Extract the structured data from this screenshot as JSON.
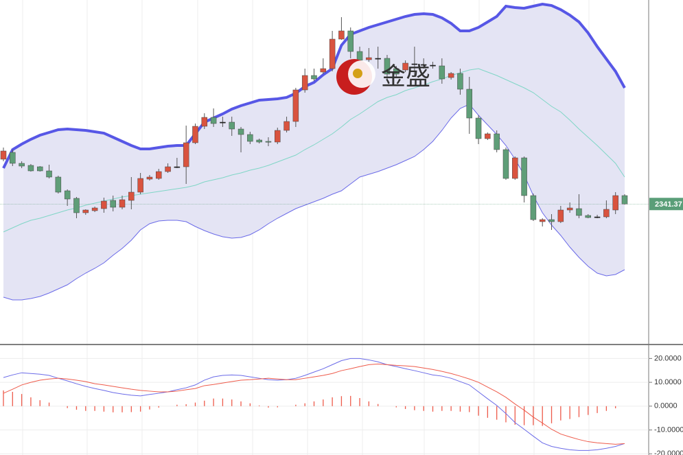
{
  "chart_data": [
    {
      "type": "candlestick",
      "open": [
        2374,
        2379,
        2371,
        2369.5,
        2368.5,
        2365.5,
        2361,
        2351,
        2345.5,
        2335,
        2336.5,
        2338,
        2344,
        2339,
        2344,
        2350,
        2359.5,
        2360,
        2365,
        2368.5,
        2368.5,
        2386,
        2398,
        2404.5,
        2401,
        2401,
        2396,
        2392,
        2388,
        2387,
        2386.5,
        2395,
        2401.5,
        2424.5,
        2435,
        2437.5,
        2440,
        2461.5,
        2467.5,
        2452.5,
        2446.5,
        2447.5,
        2447.5,
        2440,
        2439,
        2443.5,
        2443,
        2442.5,
        2442,
        2433.5,
        2436.5,
        2425,
        2404,
        2389,
        2392.5,
        2381,
        2360,
        2375,
        2347.5,
        2328.5,
        2330,
        2328.5,
        2337,
        2338,
        2333,
        2332,
        2332,
        2337,
        2347.5
      ],
      "high": [
        2382.5,
        2381,
        2372.5,
        2370.5,
        2369,
        2370,
        2362,
        2352,
        2346.5,
        2337.5,
        2339.5,
        2346,
        2347.5,
        2347.5,
        2361,
        2364,
        2362.5,
        2367,
        2371,
        2375,
        2398.5,
        2400,
        2407.5,
        2411,
        2405,
        2405,
        2397.5,
        2394,
        2389,
        2390,
        2397,
        2405,
        2426,
        2440,
        2440,
        2447.5,
        2467.5,
        2477.5,
        2470,
        2456,
        2455,
        2456,
        2450,
        2442,
        2446,
        2456,
        2447.5,
        2445,
        2447.5,
        2437.5,
        2440,
        2434,
        2406,
        2393.5,
        2395,
        2382.5,
        2376,
        2376,
        2349,
        2331,
        2334,
        2340,
        2342.5,
        2348.5,
        2334,
        2333.5,
        2344,
        2350,
        2348.5
      ],
      "low": [
        2372.5,
        2369,
        2367.5,
        2365,
        2365,
        2360,
        2349,
        2340,
        2331,
        2333.5,
        2335.5,
        2335,
        2336,
        2337.5,
        2337.5,
        2348.5,
        2358.5,
        2359,
        2364,
        2367.5,
        2356,
        2385,
        2396,
        2397.5,
        2397.5,
        2391,
        2379,
        2385,
        2385.5,
        2383.5,
        2385,
        2393.5,
        2397.5,
        2422.5,
        2431,
        2436,
        2438,
        2461,
        2447.5,
        2442.5,
        2445,
        2440,
        2432.5,
        2434,
        2437.5,
        2435,
        2440,
        2440,
        2429,
        2432,
        2421,
        2392.5,
        2385,
        2388,
        2379,
        2359,
        2359,
        2342.5,
        2329,
        2325,
        2322.5,
        2327.5,
        2335,
        2331,
        2331,
        2331,
        2331,
        2334,
        2341
      ],
      "close": [
        2380,
        2371,
        2369,
        2365.5,
        2365.5,
        2361,
        2350,
        2345,
        2335,
        2337,
        2338.5,
        2343.5,
        2339,
        2344.5,
        2350,
        2360,
        2361,
        2365,
        2368.5,
        2368.5,
        2386,
        2398,
        2404.5,
        2400,
        2401,
        2396,
        2392,
        2387,
        2386.5,
        2386.5,
        2395,
        2401.5,
        2424.5,
        2435,
        2432.5,
        2440,
        2461.5,
        2467.5,
        2452.5,
        2446,
        2448,
        2447.5,
        2436,
        2436,
        2444,
        2443.5,
        2443,
        2442.5,
        2432.5,
        2436.5,
        2425,
        2404,
        2389,
        2392.5,
        2381,
        2360,
        2375,
        2347.5,
        2330,
        2330,
        2328.5,
        2337,
        2338.5,
        2333,
        2331.5,
        2332,
        2337.5,
        2347.5,
        2341.37
      ],
      "up_color": "#d9533f",
      "down_color": "#5f9e78",
      "doji_color": "#222222",
      "bands": [
        {
          "color": "#5757e6",
          "values": [
            2367.5,
            2381,
            2385,
            2388.5,
            2391.5,
            2393.5,
            2395.5,
            2396,
            2395.5,
            2395,
            2394,
            2393,
            2390,
            2387,
            2384,
            2381.5,
            2381.5,
            2382.5,
            2383.5,
            2384,
            2384,
            2392.5,
            2401,
            2404,
            2407,
            2410.5,
            2413,
            2415,
            2417,
            2417.5,
            2418,
            2419,
            2422,
            2427,
            2430,
            2435.5,
            2440,
            2457,
            2465,
            2467.5,
            2470,
            2472,
            2474,
            2476,
            2478,
            2479.5,
            2480,
            2479.5,
            2477,
            2473,
            2467.5,
            2467.5,
            2470,
            2474,
            2478,
            2485.5,
            2484.5,
            2484,
            2485.5,
            2487,
            2486,
            2483,
            2479,
            2474,
            2466,
            2456,
            2447,
            2438,
            2426
          ]
        },
        {
          "color": "#7fd6c6",
          "values": [
            2321,
            2324,
            2327,
            2329.5,
            2331,
            2333,
            2335,
            2337,
            2338.5,
            2340.5,
            2342,
            2343.5,
            2345,
            2346.5,
            2347.5,
            2348.5,
            2349.5,
            2350.5,
            2351.5,
            2352.5,
            2353.5,
            2355,
            2357.5,
            2359,
            2360.5,
            2362.5,
            2364,
            2366,
            2367.5,
            2369.5,
            2372,
            2374.5,
            2377,
            2381,
            2384.5,
            2388.5,
            2392.5,
            2397.5,
            2403,
            2407,
            2411.5,
            2416,
            2419,
            2421,
            2424,
            2426,
            2428,
            2430.5,
            2432.5,
            2435,
            2437,
            2439,
            2440,
            2437.5,
            2435,
            2432,
            2429,
            2426,
            2422.5,
            2417.5,
            2412.5,
            2408.5,
            2402.5,
            2396,
            2390,
            2384,
            2377.5,
            2371,
            2361
          ]
        },
        {
          "color": "#6a6ae8",
          "values": [
            2273.5,
            2271.5,
            2271.5,
            2272.5,
            2274,
            2276.5,
            2279.5,
            2282.5,
            2287,
            2291,
            2294.5,
            2298.5,
            2304,
            2309,
            2315,
            2322.5,
            2327,
            2329,
            2329.5,
            2329.5,
            2328.5,
            2325,
            2322,
            2319.5,
            2317.5,
            2316.5,
            2317,
            2319,
            2322.5,
            2327,
            2331,
            2334.5,
            2338,
            2340.5,
            2343,
            2345.5,
            2348.5,
            2351,
            2356,
            2361,
            2363,
            2365,
            2367.5,
            2370,
            2373,
            2376,
            2381,
            2387,
            2395,
            2404,
            2411,
            2414,
            2406,
            2399,
            2392,
            2384,
            2374,
            2362.5,
            2347.5,
            2335,
            2326,
            2318.5,
            2310,
            2302.5,
            2296,
            2291,
            2289,
            2290,
            2293.5
          ]
        }
      ],
      "band_fill": "#e4e4f4",
      "ylim": [
        2240,
        2490
      ],
      "last_price": 2341.37,
      "last_price_color": "#5a9e78",
      "watermark": "金盛"
    },
    {
      "type": "macd",
      "series": [
        {
          "color": "#6a6ae8",
          "values": [
            12,
            13.1,
            14,
            13.7,
            13.4,
            12.9,
            11.7,
            10.6,
            9.4,
            8.3,
            7.4,
            6.6,
            5.7,
            5.1,
            4.6,
            4.3,
            4.9,
            5.4,
            6,
            6.9,
            7.7,
            8.9,
            10.9,
            12.3,
            12.9,
            13.1,
            12.9,
            12.3,
            11.7,
            11.1,
            10.9,
            11.1,
            11.7,
            12.9,
            14.3,
            15.7,
            17.4,
            19.1,
            20,
            20,
            19.4,
            18.6,
            17.4,
            16.6,
            15.7,
            14.9,
            14,
            13.1,
            12.6,
            11.7,
            10.3,
            8.9,
            6,
            3.1,
            0.3,
            -3.1,
            -6.9,
            -9.7,
            -12.6,
            -15.4,
            -16.9,
            -17.7,
            -18.3,
            -18.6,
            -18.6,
            -18.3,
            -17.7,
            -16.9,
            -15.7
          ]
        },
        {
          "color": "#ee5a4a",
          "values": [
            5.4,
            7.1,
            8.9,
            10,
            10.9,
            11.4,
            11.7,
            11.4,
            10.9,
            10.3,
            9.4,
            8.9,
            8.3,
            7.7,
            7.1,
            6.6,
            6.3,
            6,
            6,
            6.3,
            6.9,
            7.4,
            8.6,
            9.1,
            9.7,
            10.3,
            10.9,
            11.1,
            11.4,
            11.7,
            11.4,
            11.1,
            11.1,
            11.7,
            12.3,
            12.9,
            13.7,
            14.9,
            15.7,
            16.6,
            17.4,
            17.7,
            17.4,
            17.1,
            16.9,
            16.6,
            16,
            15.4,
            14.6,
            13.7,
            12.6,
            11.4,
            10,
            8,
            6,
            3.7,
            0.9,
            -1.7,
            -4.6,
            -7.1,
            -9.7,
            -11.7,
            -12.9,
            -14,
            -14.9,
            -15.4,
            -15.7,
            -16,
            -15.7
          ]
        }
      ],
      "histogram": {
        "color": "#ee5a4a",
        "values": [
          6.6,
          6,
          5.1,
          3.7,
          2.5,
          1.5,
          0,
          -0.8,
          -1.5,
          -2,
          -2,
          -2.3,
          -2.6,
          -2.6,
          -2.5,
          -2.3,
          -1.4,
          -0.6,
          0,
          0.6,
          0.8,
          1.5,
          2.3,
          3.2,
          3.2,
          2.8,
          2,
          1.2,
          0.3,
          -0.6,
          -0.5,
          0,
          0.6,
          1.2,
          2,
          2.8,
          3.7,
          4.2,
          4.3,
          3.4,
          2,
          0.9,
          0,
          -0.5,
          -1.2,
          -1.7,
          -2,
          -2.3,
          -2,
          -2,
          -2.3,
          -2.5,
          -4,
          -4.9,
          -5.7,
          -6.8,
          -7.8,
          -8,
          -8,
          -8.3,
          -7.2,
          -6,
          -5.4,
          -4.6,
          -3.7,
          -2.9,
          -2,
          -0.9,
          0
        ]
      },
      "ylim": [
        -20.5,
        25
      ],
      "yticks": [
        {
          "value": 20,
          "label": "20.0000"
        },
        {
          "value": 10,
          "label": "10.0000"
        },
        {
          "value": 0,
          "label": "0.0000"
        },
        {
          "value": -10,
          "label": "-10.0000"
        },
        {
          "value": -20,
          "label": "-20.0000"
        }
      ],
      "grid": true
    }
  ]
}
